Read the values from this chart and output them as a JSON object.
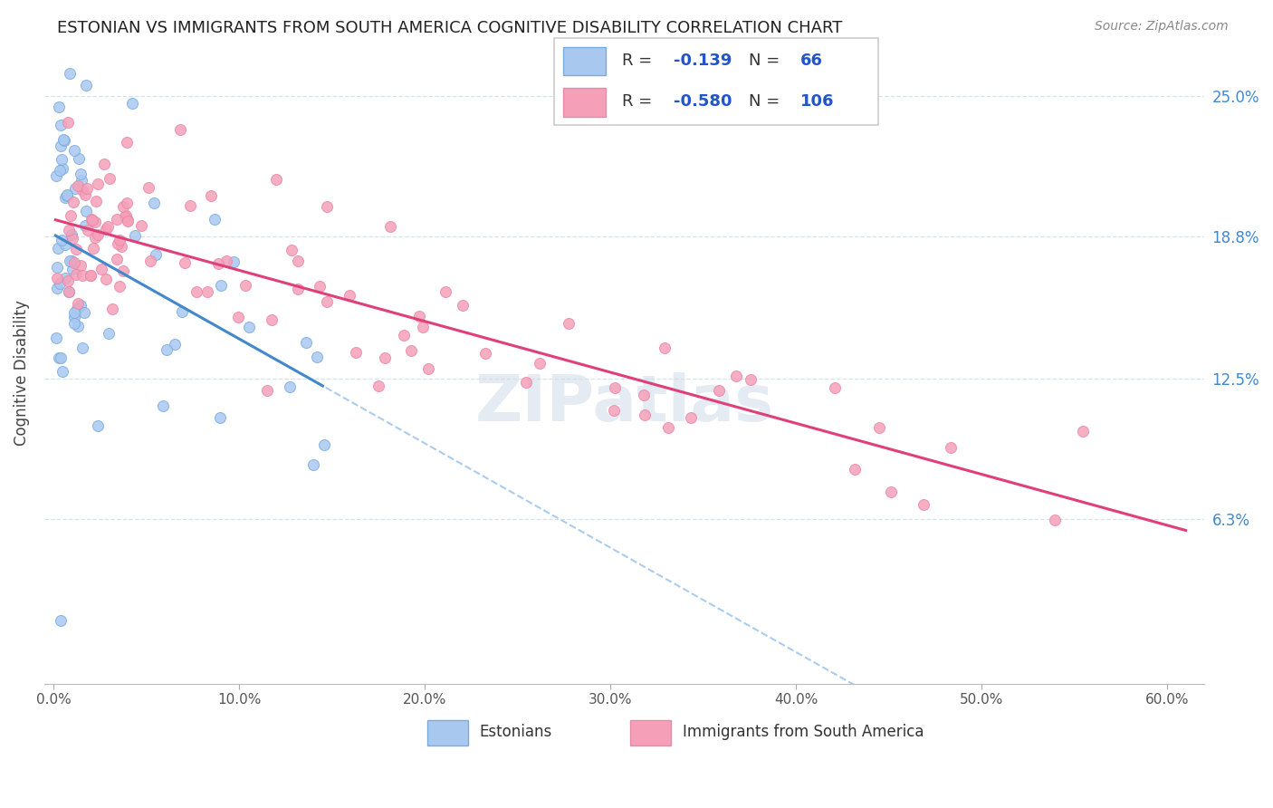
{
  "title": "ESTONIAN VS IMMIGRANTS FROM SOUTH AMERICA COGNITIVE DISABILITY CORRELATION CHART",
  "source": "Source: ZipAtlas.com",
  "ylabel": "Cognitive Disability",
  "ytick_labels": [
    "25.0%",
    "18.8%",
    "12.5%",
    "6.3%"
  ],
  "ytick_values": [
    0.25,
    0.188,
    0.125,
    0.063
  ],
  "xtick_labels": [
    "0.0%",
    "10.0%",
    "20.0%",
    "30.0%",
    "40.0%",
    "50.0%",
    "60.0%"
  ],
  "xtick_values": [
    0.0,
    0.1,
    0.2,
    0.3,
    0.4,
    0.5,
    0.6
  ],
  "xlim": [
    -0.005,
    0.62
  ],
  "ylim": [
    -0.01,
    0.265
  ],
  "estonians_color": "#a8c8f0",
  "estonians_edge": "#7aabdd",
  "immigrants_color": "#f5a0b8",
  "immigrants_edge": "#e888aa",
  "trend_estonian_color": "#4488cc",
  "trend_immigrant_color": "#e0407a",
  "trend_dashed_color": "#aaccee",
  "legend_r1": "-0.139",
  "legend_n1": "66",
  "legend_r2": "-0.580",
  "legend_n2": "106",
  "legend_text_color": "#2255cc",
  "legend_label_color": "#333333",
  "watermark": "ZIPatlas",
  "bottom_label1": "Estonians",
  "bottom_label2": "Immigrants from South America"
}
